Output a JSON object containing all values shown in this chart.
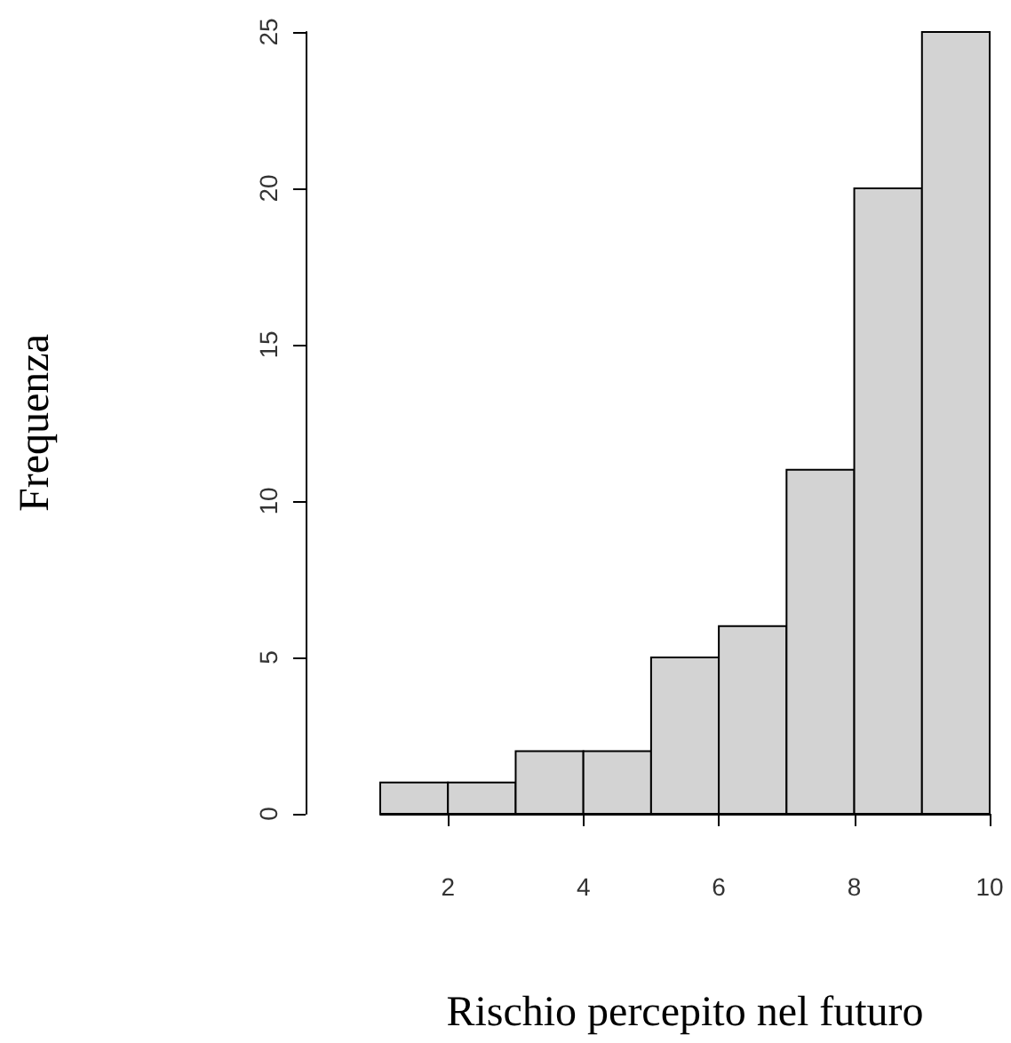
{
  "chart_data": {
    "type": "histogram",
    "xlabel": "Rischio percepito nel futuro",
    "ylabel": "Frequenza",
    "bins": [
      1,
      2,
      3,
      4,
      5,
      6,
      7,
      8,
      9,
      10
    ],
    "values": [
      1,
      1,
      2,
      2,
      5,
      6,
      11,
      20,
      25
    ],
    "color": "#d3d3d3",
    "xlim": [
      1,
      10
    ],
    "xticks": [
      2,
      4,
      6,
      8,
      10
    ],
    "ylim": [
      0,
      25
    ],
    "yticks": [
      0,
      5,
      10,
      15,
      20,
      25
    ],
    "grid": false
  }
}
